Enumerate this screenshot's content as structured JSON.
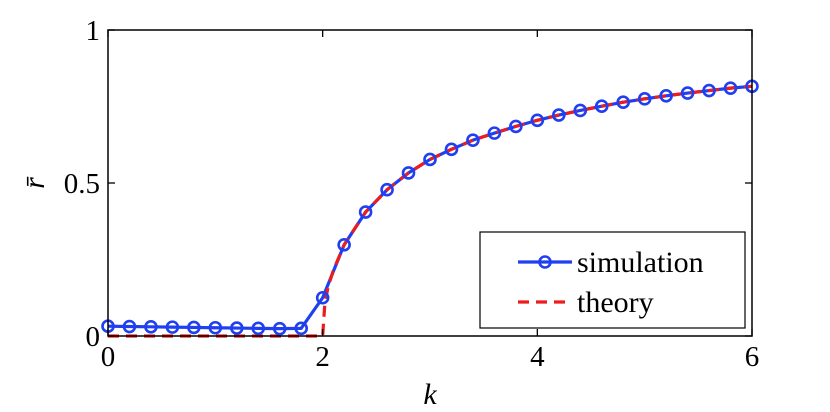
{
  "chart_data": {
    "type": "line",
    "xlabel": "k",
    "ylabel": "r̄",
    "xlim": [
      0,
      6
    ],
    "ylim": [
      0,
      1
    ],
    "xticks": [
      0,
      2,
      4,
      6
    ],
    "xtick_labels": [
      "0",
      "2",
      "4",
      "6"
    ],
    "yticks": [
      0,
      0.5,
      1
    ],
    "ytick_labels": [
      "0",
      "0.5",
      "1"
    ],
    "grid": false,
    "legend_position": "bottom-right",
    "series": [
      {
        "name": "simulation",
        "color": "#1f3ff0",
        "style": "solid-circle-markers",
        "x": [
          0,
          0.2,
          0.4,
          0.6,
          0.8,
          1.0,
          1.2,
          1.4,
          1.6,
          1.8,
          2.0,
          2.2,
          2.4,
          2.6,
          2.8,
          3.0,
          3.2,
          3.4,
          3.6,
          3.8,
          4.0,
          4.2,
          4.4,
          4.6,
          4.8,
          5.0,
          5.2,
          5.4,
          5.6,
          5.8,
          6.0
        ],
        "y": [
          0.032,
          0.031,
          0.03,
          0.029,
          0.028,
          0.027,
          0.026,
          0.025,
          0.024,
          0.025,
          0.125,
          0.298,
          0.405,
          0.478,
          0.533,
          0.577,
          0.61,
          0.64,
          0.663,
          0.685,
          0.705,
          0.722,
          0.737,
          0.751,
          0.764,
          0.775,
          0.785,
          0.794,
          0.802,
          0.81,
          0.816
        ]
      },
      {
        "name": "theory",
        "color": "#ee1c1c",
        "style": "dashed",
        "x": [
          0,
          1.99,
          2.0,
          2.02,
          2.05,
          2.1,
          2.2,
          2.4,
          2.6,
          2.8,
          3.0,
          3.2,
          3.4,
          3.6,
          3.8,
          4.0,
          4.2,
          4.4,
          4.6,
          4.8,
          5.0,
          5.2,
          5.4,
          5.6,
          5.8,
          6.0
        ],
        "y": [
          0.0,
          0.0,
          0.0,
          0.105,
          0.16,
          0.215,
          0.298,
          0.405,
          0.478,
          0.533,
          0.577,
          0.61,
          0.64,
          0.663,
          0.685,
          0.705,
          0.722,
          0.737,
          0.751,
          0.764,
          0.775,
          0.785,
          0.794,
          0.802,
          0.81,
          0.816
        ]
      }
    ]
  }
}
